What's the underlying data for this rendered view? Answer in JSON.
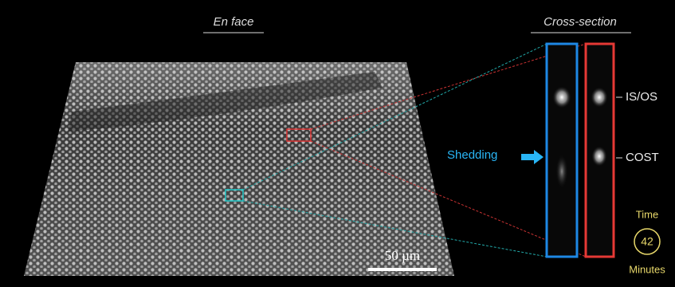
{
  "figure": {
    "en_face_label": "En face",
    "cross_section_label": "Cross-section",
    "shedding_label": "Shedding",
    "layers": [
      "IS/OS",
      "COST"
    ],
    "time_label": "Time",
    "time_value": "42",
    "time_unit": "Minutes",
    "scale_bar": "50 µm"
  }
}
